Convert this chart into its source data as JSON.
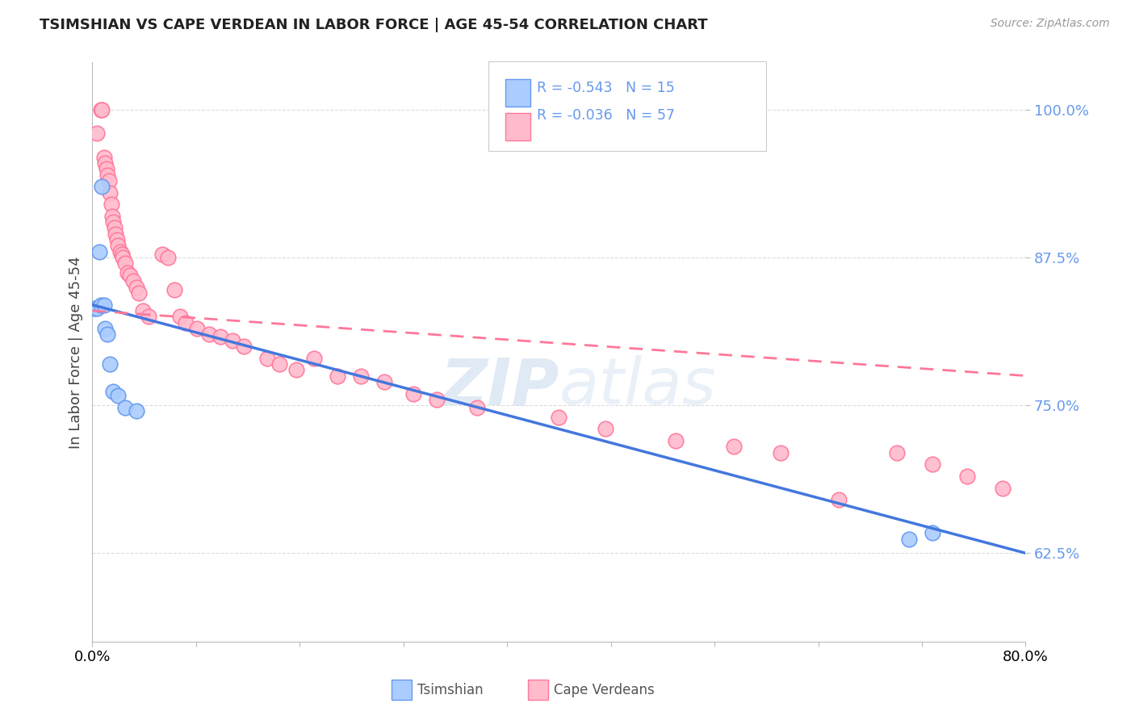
{
  "title": "TSIMSHIAN VS CAPE VERDEAN IN LABOR FORCE | AGE 45-54 CORRELATION CHART",
  "source": "Source: ZipAtlas.com",
  "ylabel": "In Labor Force | Age 45-54",
  "xmin": 0.0,
  "xmax": 0.8,
  "ymin": 0.55,
  "ymax": 1.04,
  "yticks": [
    0.625,
    0.75,
    0.875,
    1.0
  ],
  "ytick_labels": [
    "62.5%",
    "75.0%",
    "87.5%",
    "100.0%"
  ],
  "xtick_left": "0.0%",
  "xtick_right": "80.0%",
  "legend_r1": "R = -0.543",
  "legend_n1": "N = 15",
  "legend_r2": "R = -0.036",
  "legend_n2": "N = 57",
  "label1": "Tsimshian",
  "label2": "Cape Verdeans",
  "blue_edge": "#6699ee",
  "blue_face": "#aaccff",
  "pink_edge": "#ff7799",
  "pink_face": "#ffbbcc",
  "blue_line": "#4477dd",
  "pink_line": "#ff7799",
  "watermark_color": "#d0dff0",
  "grid_color": "#dddddd",
  "bg_color": "#ffffff",
  "tsimshian_x": [
    0.002,
    0.004,
    0.006,
    0.007,
    0.008,
    0.01,
    0.011,
    0.013,
    0.015,
    0.018,
    0.022,
    0.028,
    0.038,
    0.7,
    0.72
  ],
  "tsimshian_y": [
    0.832,
    0.832,
    0.88,
    0.835,
    0.935,
    0.835,
    0.815,
    0.81,
    0.785,
    0.762,
    0.758,
    0.748,
    0.745,
    0.637,
    0.642
  ],
  "capeverdean_x": [
    0.004,
    0.007,
    0.008,
    0.01,
    0.011,
    0.012,
    0.013,
    0.014,
    0.015,
    0.016,
    0.017,
    0.018,
    0.019,
    0.02,
    0.021,
    0.022,
    0.024,
    0.025,
    0.026,
    0.028,
    0.03,
    0.032,
    0.035,
    0.038,
    0.04,
    0.043,
    0.048,
    0.06,
    0.065,
    0.07,
    0.075,
    0.08,
    0.09,
    0.1,
    0.11,
    0.12,
    0.13,
    0.15,
    0.16,
    0.175,
    0.19,
    0.21,
    0.23,
    0.25,
    0.275,
    0.295,
    0.33,
    0.4,
    0.44,
    0.5,
    0.55,
    0.59,
    0.64,
    0.69,
    0.72,
    0.75,
    0.78
  ],
  "capeverdean_y": [
    0.98,
    1.0,
    1.0,
    0.96,
    0.955,
    0.95,
    0.945,
    0.94,
    0.93,
    0.92,
    0.91,
    0.905,
    0.9,
    0.895,
    0.89,
    0.885,
    0.88,
    0.878,
    0.875,
    0.87,
    0.862,
    0.86,
    0.855,
    0.85,
    0.845,
    0.83,
    0.825,
    0.878,
    0.875,
    0.848,
    0.825,
    0.82,
    0.815,
    0.81,
    0.808,
    0.805,
    0.8,
    0.79,
    0.785,
    0.78,
    0.79,
    0.775,
    0.775,
    0.77,
    0.76,
    0.755,
    0.748,
    0.74,
    0.73,
    0.72,
    0.715,
    0.71,
    0.67,
    0.71,
    0.7,
    0.69,
    0.68
  ]
}
